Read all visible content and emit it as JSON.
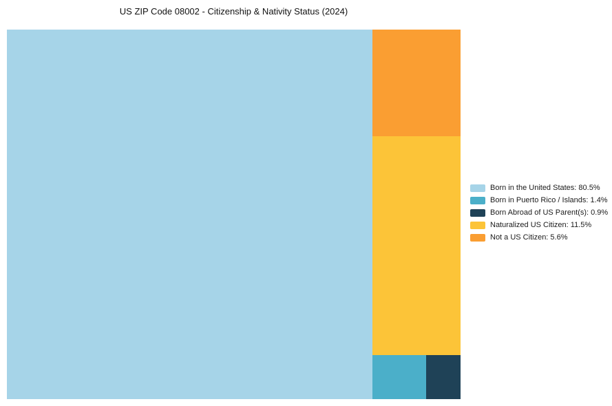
{
  "chart_data": {
    "type": "treemap",
    "title": "US ZIP Code 08002 - Citizenship & Nativity Status (2024)",
    "categories": [
      "Born in the United States",
      "Born in Puerto Rico / Islands",
      "Born Abroad of US Parent(s)",
      "Naturalized US Citizen",
      "Not a US Citizen"
    ],
    "values": [
      80.5,
      1.4,
      0.9,
      11.5,
      5.6
    ],
    "colors": [
      "#a6d4e8",
      "#4bafc9",
      "#1f4257",
      "#fcc438",
      "#fa9e32"
    ],
    "legend_position": "right",
    "grid": "off",
    "legend": [
      {
        "label": "Born in the United States: 80.5%",
        "color": "#a6d4e8"
      },
      {
        "label": "Born in Puerto Rico / Islands: 1.4%",
        "color": "#4bafc9"
      },
      {
        "label": "Born Abroad of US Parent(s): 0.9%",
        "color": "#1f4257"
      },
      {
        "label": "Naturalized US Citizen: 11.5%",
        "color": "#fcc438"
      },
      {
        "label": "Not a US Citizen: 5.6%",
        "color": "#fa9e32"
      }
    ],
    "layout_rects": [
      {
        "name": "born-in-the-united-states",
        "color_index": 0,
        "x": 0,
        "y": 0,
        "w": 0.8058,
        "h": 1
      },
      {
        "name": "not-a-us-citizen",
        "color_index": 4,
        "x": 0.8058,
        "y": 0,
        "w": 0.1942,
        "h": 0.2887
      },
      {
        "name": "naturalized-us-citizen",
        "color_index": 3,
        "x": 0.8058,
        "y": 0.2887,
        "w": 0.1942,
        "h": 0.5928
      },
      {
        "name": "born-in-puerto-rico-islands",
        "color_index": 1,
        "x": 0.8058,
        "y": 0.8815,
        "w": 0.1182,
        "h": 0.1185
      },
      {
        "name": "born-abroad-of-us-parents",
        "color_index": 2,
        "x": 0.924,
        "y": 0.8815,
        "w": 0.076,
        "h": 0.1185
      }
    ]
  }
}
